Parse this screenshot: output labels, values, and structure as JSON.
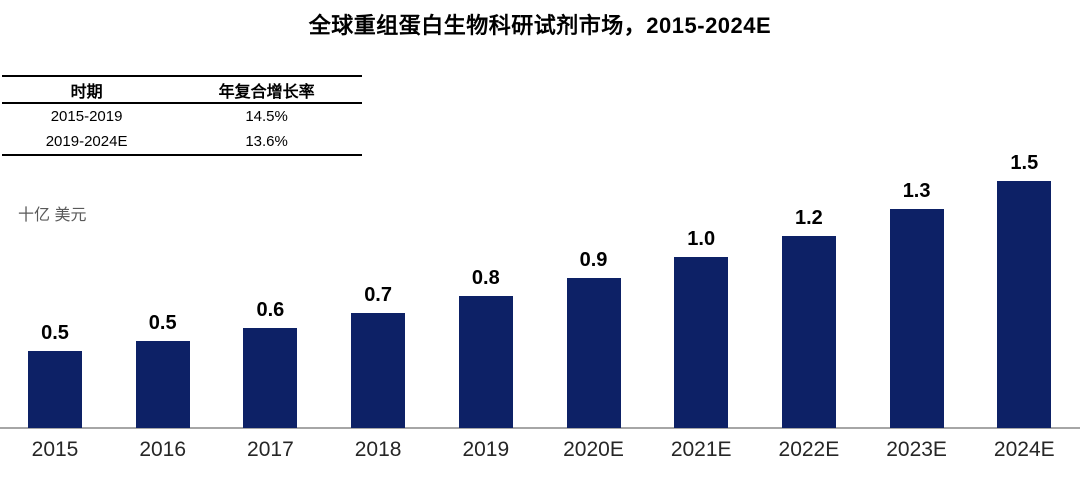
{
  "title": "全球重组蛋白生物科研试剂市场，2015-2024E",
  "cagr_table": {
    "headers": [
      "时期",
      "年复合增长率"
    ],
    "rows": [
      [
        "2015-2019",
        "14.5%"
      ],
      [
        "2019-2024E",
        "13.6%"
      ]
    ]
  },
  "unit_label": "十亿 美元",
  "chart_data": {
    "type": "bar",
    "title": "全球重组蛋白生物科研试剂市场，2015-2024E",
    "ylabel": "十亿 美元",
    "xlabel": "",
    "categories": [
      "2015",
      "2016",
      "2017",
      "2018",
      "2019",
      "2020E",
      "2021E",
      "2022E",
      "2023E",
      "2024E"
    ],
    "values": [
      0.5,
      0.5,
      0.6,
      0.7,
      0.8,
      0.9,
      1.0,
      1.2,
      1.3,
      1.5
    ],
    "value_labels": [
      "0.5",
      "0.5",
      "0.6",
      "0.7",
      "0.8",
      "0.9",
      "1.0",
      "1.2",
      "1.3",
      "1.5"
    ],
    "values_precise_estimate": [
      0.47,
      0.53,
      0.61,
      0.7,
      0.8,
      0.91,
      1.04,
      1.17,
      1.33,
      1.5
    ],
    "ylim": [
      0,
      1.6
    ],
    "grid": false,
    "legend": null,
    "annotations": {
      "cagr_2015_2019": "14.5%",
      "cagr_2019_2024E": "13.6%"
    }
  },
  "colors": {
    "bar": "#0d2166",
    "axis_line": "#a6a6a6",
    "title_text": "#000000",
    "value_label_text": "#000000",
    "tick_label_text": "#262626",
    "unit_label_text": "#595959",
    "table_border": "#000000"
  }
}
